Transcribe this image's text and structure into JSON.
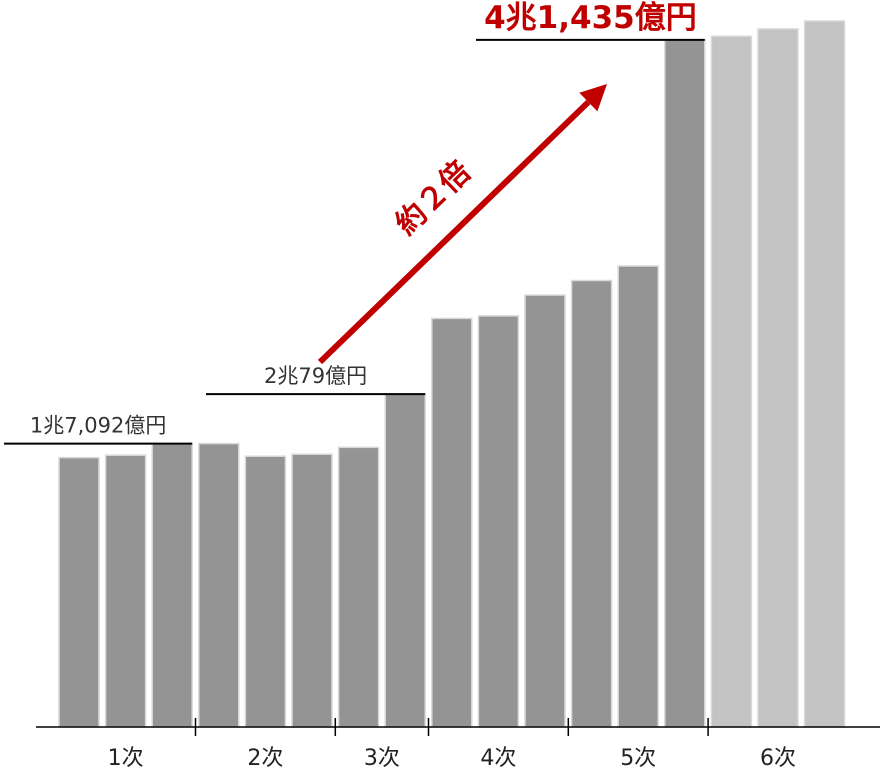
{
  "colors": {
    "bar_actual": "#949494",
    "bar_projected": "#c3c3c3",
    "accent": "#c00000"
  },
  "chart_data": {
    "type": "bar",
    "unit": "億円",
    "values": [
      16250,
      16390,
      17092,
      17092,
      16330,
      16450,
      16870,
      20079,
      24640,
      24790,
      26050,
      26930,
      27800,
      41435,
      41660,
      42100,
      42580
    ],
    "projected_from_index": 14,
    "ylim": [
      0,
      43000
    ],
    "groups": [
      {
        "label": "1次",
        "start": 0,
        "end": 2
      },
      {
        "label": "2次",
        "start": 3,
        "end": 5
      },
      {
        "label": "3次",
        "start": 6,
        "end": 7
      },
      {
        "label": "4次",
        "start": 8,
        "end": 10
      },
      {
        "label": "5次",
        "start": 11,
        "end": 13
      },
      {
        "label": "6次",
        "start": 14,
        "end": 16
      }
    ],
    "annotations": [
      {
        "text": "1兆7,092億円",
        "bar_index": 2,
        "style": "normal"
      },
      {
        "text": "2兆79億円",
        "bar_index": 7,
        "style": "normal"
      },
      {
        "text": "4兆1,435億円",
        "bar_index": 13,
        "style": "bold"
      }
    ],
    "arrow": {
      "label": "約２倍",
      "from_bar": 7,
      "to_bar": 13
    }
  }
}
